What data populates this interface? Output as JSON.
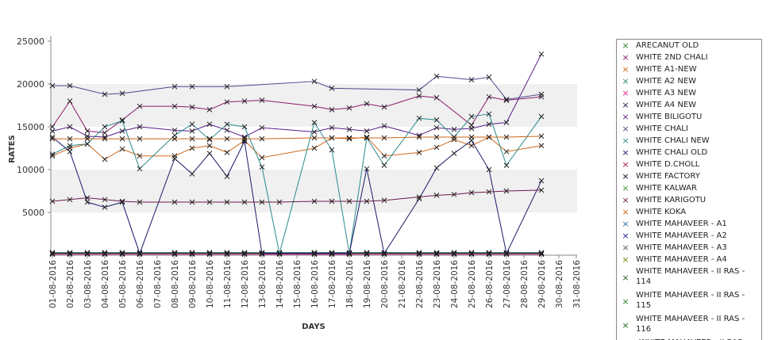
{
  "chart_data": {
    "type": "line",
    "title": "",
    "xlabel": "DAYS",
    "ylabel": "RATES",
    "ylim": [
      0,
      25000
    ],
    "yticks": [
      5000,
      10000,
      15000,
      20000,
      25000
    ],
    "grid": "horizontal bands",
    "legend_position": "right",
    "categories": [
      "01-08-2016",
      "02-08-2016",
      "03-08-2016",
      "04-08-2016",
      "05-08-2016",
      "06-08-2016",
      "07-08-2016",
      "08-08-2016",
      "09-08-2016",
      "10-08-2016",
      "11-08-2016",
      "12-08-2016",
      "13-08-2016",
      "14-08-2016",
      "15-08-2016",
      "16-08-2016",
      "17-08-2016",
      "18-08-2016",
      "19-08-2016",
      "20-08-2016",
      "21-08-2016",
      "22-08-2016",
      "23-08-2016",
      "24-08-2016",
      "25-08-2016",
      "26-08-2016",
      "27-08-2016",
      "28-08-2016",
      "29-08-2016",
      "30-08-2016",
      "31-08-2016"
    ],
    "series": [
      {
        "name": "ARECANUT OLD",
        "color": "#2e8b2e",
        "values": [
          200,
          200,
          200,
          200,
          200,
          200,
          null,
          200,
          200,
          200,
          200,
          200,
          200,
          200,
          null,
          200,
          200,
          200,
          200,
          200,
          null,
          200,
          200,
          200,
          200,
          200,
          200,
          null,
          200,
          null,
          null
        ]
      },
      {
        "name": "WHITE 2ND CHALI",
        "color": "#8a1a6a",
        "values": [
          15000,
          18000,
          14500,
          14300,
          15800,
          17400,
          null,
          17400,
          17300,
          17000,
          17900,
          18000,
          18100,
          null,
          null,
          17400,
          17000,
          17200,
          17700,
          17300,
          null,
          18600,
          18400,
          null,
          15200,
          18500,
          18100,
          null,
          18500,
          null,
          null
        ]
      },
      {
        "name": "WHITE A1-NEW",
        "color": "#d2691e",
        "values": [
          11600,
          12500,
          13000,
          11200,
          12400,
          11600,
          null,
          11600,
          12500,
          12800,
          12000,
          13400,
          11400,
          null,
          null,
          12500,
          13700,
          13600,
          13800,
          11600,
          null,
          12000,
          12600,
          13500,
          12800,
          13800,
          12100,
          null,
          12800,
          null,
          null
        ]
      },
      {
        "name": "WHITE A2 NEW",
        "color": "#2e8b57",
        "values": [
          300,
          300,
          300,
          300,
          300,
          300,
          null,
          300,
          300,
          300,
          300,
          300,
          300,
          300,
          null,
          300,
          300,
          300,
          300,
          300,
          null,
          300,
          300,
          300,
          300,
          300,
          300,
          null,
          300,
          null,
          null
        ]
      },
      {
        "name": "WHITE A3 NEW",
        "color": "#e0208a",
        "values": [
          100,
          100,
          100,
          100,
          100,
          100,
          null,
          100,
          100,
          100,
          100,
          100,
          100,
          100,
          null,
          100,
          100,
          100,
          100,
          100,
          null,
          100,
          100,
          100,
          100,
          100,
          100,
          null,
          100,
          null,
          null
        ]
      },
      {
        "name": "WHITE A4 NEW",
        "color": "#1a1a40",
        "values": [
          250,
          250,
          250,
          250,
          250,
          250,
          null,
          250,
          250,
          250,
          250,
          250,
          250,
          250,
          null,
          250,
          250,
          250,
          250,
          250,
          null,
          250,
          250,
          250,
          250,
          250,
          250,
          null,
          250,
          null,
          null
        ]
      },
      {
        "name": "WHITE BILIGOTU",
        "color": "#5a1a8a",
        "values": [
          14500,
          15000,
          13900,
          13800,
          14500,
          15000,
          null,
          14600,
          14500,
          15300,
          14600,
          13800,
          14900,
          null,
          null,
          14400,
          14900,
          14700,
          14500,
          15100,
          null,
          14000,
          14900,
          14700,
          14800,
          15300,
          15500,
          null,
          23500,
          null,
          null
        ]
      },
      {
        "name": "WHITE CHALI",
        "color": "#4a4a8a",
        "values": [
          19800,
          19800,
          null,
          18800,
          18900,
          null,
          null,
          19700,
          19700,
          null,
          19700,
          null,
          null,
          null,
          null,
          20300,
          19500,
          null,
          null,
          null,
          null,
          19300,
          20900,
          null,
          20500,
          20800,
          18200,
          null,
          18800,
          null,
          null
        ]
      },
      {
        "name": "WHITE CHALI NEW",
        "color": "#2a8a8a",
        "values": [
          11800,
          12800,
          13000,
          15000,
          15700,
          10100,
          null,
          14000,
          15300,
          13500,
          15300,
          15000,
          10300,
          200,
          null,
          15500,
          12300,
          200,
          13700,
          10500,
          null,
          16000,
          15800,
          13800,
          16200,
          16500,
          10500,
          null,
          16200,
          null,
          null
        ]
      },
      {
        "name": "WHITE CHALI OLD",
        "color": "#1a1a6a",
        "values": [
          13800,
          12100,
          6200,
          5600,
          6200,
          200,
          null,
          11300,
          9500,
          11900,
          9200,
          13300,
          200,
          200,
          null,
          200,
          200,
          200,
          10100,
          200,
          null,
          6600,
          10200,
          11900,
          13400,
          10000,
          200,
          null,
          8700,
          null,
          null
        ]
      },
      {
        "name": "WHITE D.CHOLL",
        "color": "#a01a40",
        "values": [
          null,
          null,
          null,
          null,
          null,
          null,
          null,
          null,
          null,
          null,
          null,
          null,
          null,
          null,
          null,
          null,
          null,
          null,
          null,
          null,
          null,
          null,
          null,
          null,
          null,
          null,
          null,
          null,
          null,
          null,
          null
        ]
      },
      {
        "name": "WHITE FACTORY",
        "color": "#0a0a2a",
        "values": [
          null,
          null,
          null,
          null,
          null,
          null,
          null,
          null,
          null,
          null,
          null,
          null,
          null,
          null,
          null,
          null,
          null,
          null,
          null,
          null,
          null,
          null,
          null,
          null,
          null,
          null,
          null,
          null,
          null,
          null,
          null
        ]
      },
      {
        "name": "WHITE KALWAR",
        "color": "#3aa03a",
        "values": [
          null,
          null,
          null,
          null,
          null,
          null,
          null,
          null,
          null,
          null,
          null,
          null,
          null,
          null,
          null,
          null,
          null,
          null,
          null,
          null,
          null,
          null,
          null,
          null,
          null,
          null,
          null,
          null,
          null,
          null,
          null
        ]
      },
      {
        "name": "WHITE KARIGOTU",
        "color": "#6a1a4a",
        "values": [
          6300,
          6500,
          6700,
          6500,
          6300,
          6200,
          null,
          6200,
          6200,
          6200,
          6200,
          6200,
          6200,
          6200,
          null,
          6300,
          6300,
          6300,
          6300,
          6400,
          null,
          6800,
          7000,
          7100,
          7300,
          7400,
          7500,
          null,
          7600,
          null,
          null
        ]
      },
      {
        "name": "WHITE KOKA",
        "color": "#c8641a",
        "values": [
          13600,
          13600,
          13600,
          13600,
          13600,
          13600,
          null,
          13600,
          13600,
          13600,
          13600,
          13600,
          13600,
          null,
          null,
          13700,
          13700,
          13700,
          13700,
          13700,
          null,
          13800,
          13800,
          13800,
          13800,
          13800,
          13800,
          null,
          13900,
          null,
          null
        ]
      },
      {
        "name": "WHITE MAHAVEER - A1",
        "color": "#2a6aaa",
        "values": [
          null,
          null,
          null,
          null,
          null,
          null,
          null,
          null,
          null,
          null,
          null,
          null,
          null,
          null,
          null,
          null,
          null,
          null,
          null,
          null,
          null,
          null,
          null,
          null,
          null,
          null,
          null,
          null,
          null,
          null,
          null
        ]
      },
      {
        "name": "WHITE MAHAVEER - A2",
        "color": "#1a1a8a",
        "values": [
          null,
          null,
          null,
          null,
          null,
          null,
          null,
          null,
          null,
          null,
          null,
          null,
          null,
          null,
          null,
          null,
          null,
          null,
          null,
          null,
          null,
          null,
          null,
          null,
          null,
          null,
          null,
          null,
          null,
          null,
          null
        ]
      },
      {
        "name": "WHITE MAHAVEER - A3",
        "color": "#5a5a5a",
        "values": [
          null,
          null,
          null,
          null,
          null,
          null,
          null,
          null,
          null,
          null,
          null,
          null,
          null,
          null,
          null,
          null,
          null,
          null,
          null,
          null,
          null,
          null,
          null,
          null,
          null,
          null,
          null,
          null,
          null,
          null,
          null
        ]
      },
      {
        "name": "WHITE MAHAVEER - A4",
        "color": "#6a8a1a",
        "values": [
          null,
          null,
          null,
          null,
          null,
          null,
          null,
          null,
          null,
          null,
          null,
          null,
          null,
          null,
          null,
          null,
          null,
          null,
          null,
          null,
          null,
          null,
          null,
          null,
          null,
          null,
          null,
          null,
          null,
          null,
          null
        ]
      },
      {
        "name": "WHITE MAHAVEER - II RAS - 114",
        "color": "#2a5a1a",
        "values": [
          null,
          null,
          null,
          null,
          null,
          null,
          null,
          null,
          null,
          null,
          null,
          null,
          null,
          null,
          null,
          null,
          null,
          null,
          null,
          null,
          null,
          null,
          null,
          null,
          null,
          null,
          null,
          null,
          null,
          null,
          null
        ]
      },
      {
        "name": "WHITE MAHAVEER - II RAS - 115",
        "color": "#2a8a2a",
        "values": [
          null,
          null,
          null,
          null,
          null,
          null,
          null,
          null,
          null,
          null,
          null,
          null,
          null,
          null,
          null,
          null,
          null,
          null,
          null,
          null,
          null,
          null,
          null,
          null,
          null,
          null,
          null,
          null,
          null,
          null,
          null
        ]
      },
      {
        "name": "WHITE MAHAVEER - II RAS - 116",
        "color": "#1a6a1a",
        "values": [
          null,
          null,
          null,
          null,
          null,
          null,
          null,
          null,
          null,
          null,
          null,
          null,
          null,
          null,
          null,
          null,
          null,
          null,
          null,
          null,
          null,
          null,
          null,
          null,
          null,
          null,
          null,
          null,
          null,
          null,
          null
        ]
      }
    ],
    "legend_partial": "WHITE MAHAVEER - II RAS"
  }
}
